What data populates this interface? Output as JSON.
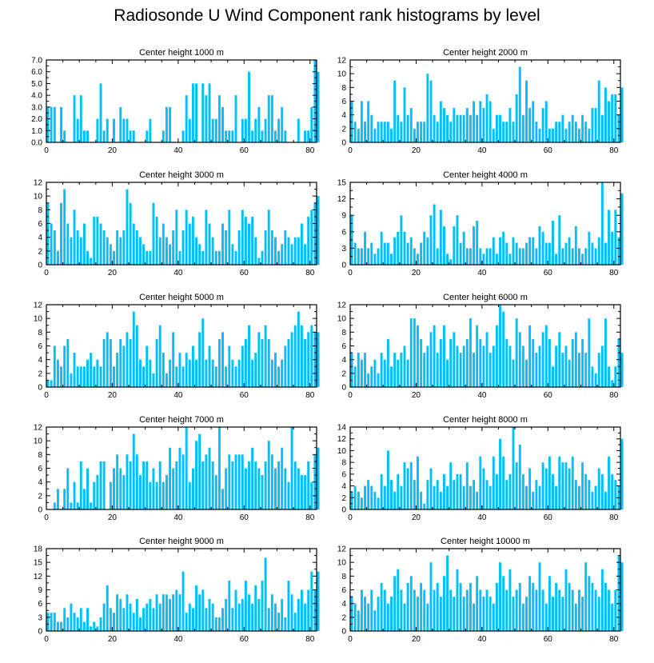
{
  "title": "Radiosonde U Wind Component rank histograms by level",
  "colors": {
    "bar": "#00bfff",
    "axis": "#000000"
  },
  "chart_data": [
    {
      "type": "bar",
      "title": "Center height 1000 m",
      "xlim": [
        0,
        82
      ],
      "ylim": [
        0,
        7
      ],
      "xticks": [
        0,
        20,
        40,
        60,
        80
      ],
      "xtick_labels": [
        "0",
        "20",
        "40",
        "60",
        "80"
      ],
      "yticks": [
        0,
        1,
        2,
        3,
        4,
        5,
        6,
        7
      ],
      "ytick_labels": [
        "0.0",
        "1.0",
        "2.0",
        "3.0",
        "4.0",
        "5.0",
        "6.0",
        "7.0"
      ],
      "values": [
        3,
        3,
        3,
        0,
        3,
        1,
        0,
        0,
        4,
        2,
        4,
        1,
        1,
        0,
        0,
        2,
        5,
        1,
        2,
        0,
        2,
        0,
        3,
        2,
        2,
        1,
        1,
        0,
        0,
        0,
        1,
        2,
        0,
        0,
        0,
        1,
        3,
        3,
        0,
        0,
        0,
        1,
        4,
        2,
        5,
        5,
        0,
        5,
        4,
        5,
        2,
        2,
        4,
        3,
        1,
        1,
        1,
        4,
        0,
        2,
        2,
        6,
        1,
        2,
        3,
        1,
        2,
        4,
        4,
        1,
        2,
        3,
        1,
        0,
        0,
        0,
        2,
        0,
        1,
        1,
        3,
        7,
        6
      ]
    },
    {
      "type": "bar",
      "title": "Center height 2000 m",
      "xlim": [
        0,
        82
      ],
      "ylim": [
        0,
        12
      ],
      "xticks": [
        0,
        20,
        40,
        60,
        80
      ],
      "xtick_labels": [
        "0",
        "20",
        "40",
        "60",
        "80"
      ],
      "yticks": [
        0,
        2,
        4,
        6,
        8,
        10,
        12
      ],
      "ytick_labels": [
        "0",
        "2",
        "4",
        "6",
        "8",
        "10",
        "12"
      ],
      "values": [
        6,
        3,
        2,
        6,
        3,
        6,
        4,
        2,
        3,
        3,
        3,
        3,
        2,
        9,
        4,
        3,
        8,
        4,
        5,
        2,
        3,
        3,
        3,
        10,
        9,
        4,
        3,
        6,
        5,
        4,
        3,
        5,
        4,
        4,
        4,
        5,
        4,
        6,
        4,
        6,
        5,
        7,
        6,
        2,
        4,
        4,
        3,
        3,
        5,
        3,
        7,
        11,
        4,
        9,
        5,
        6,
        3,
        2,
        5,
        6,
        2,
        2,
        3,
        3,
        4,
        2,
        3,
        4,
        3,
        2,
        4,
        3,
        2,
        5,
        5,
        9,
        4,
        8,
        6,
        7,
        7,
        4,
        8
      ]
    },
    {
      "type": "bar",
      "title": "Center height 3000 m",
      "xlim": [
        0,
        82
      ],
      "ylim": [
        0,
        12
      ],
      "xticks": [
        0,
        20,
        40,
        60,
        80
      ],
      "xtick_labels": [
        "0",
        "20",
        "40",
        "60",
        "80"
      ],
      "yticks": [
        0,
        2,
        4,
        6,
        8,
        10,
        12
      ],
      "ytick_labels": [
        "0",
        "2",
        "4",
        "6",
        "8",
        "10",
        "12"
      ],
      "values": [
        9,
        6,
        5,
        2,
        9,
        11,
        6,
        4,
        8,
        5,
        4,
        6,
        2,
        1,
        7,
        7,
        6,
        5,
        4,
        3,
        2,
        5,
        4,
        5,
        11,
        9,
        6,
        5,
        4,
        3,
        2,
        2,
        9,
        7,
        4,
        6,
        4,
        3,
        5,
        8,
        2,
        5,
        8,
        6,
        7,
        4,
        3,
        2,
        8,
        6,
        4,
        2,
        2,
        6,
        5,
        8,
        3,
        2,
        5,
        8,
        7,
        6,
        7,
        4,
        1,
        2,
        5,
        8,
        5,
        4,
        2,
        3,
        5,
        4,
        3,
        4,
        4,
        6,
        3,
        7,
        8,
        9,
        10
      ]
    },
    {
      "type": "bar",
      "title": "Center height 4000 m",
      "xlim": [
        0,
        82
      ],
      "ylim": [
        0,
        15
      ],
      "xticks": [
        0,
        20,
        40,
        60,
        80
      ],
      "xtick_labels": [
        "0",
        "20",
        "40",
        "60",
        "80"
      ],
      "yticks": [
        0,
        3,
        6,
        9,
        12,
        15
      ],
      "ytick_labels": [
        "0",
        "3",
        "6",
        "9",
        "12",
        "15"
      ],
      "values": [
        9,
        4,
        3,
        3,
        6,
        3,
        4,
        2,
        3,
        6,
        4,
        4,
        2,
        5,
        6,
        9,
        6,
        4,
        5,
        3,
        2,
        4,
        6,
        5,
        9,
        11,
        3,
        10,
        7,
        2,
        1,
        7,
        9,
        4,
        6,
        3,
        3,
        7,
        8,
        3,
        2,
        3,
        3,
        5,
        2,
        5,
        6,
        4,
        2,
        5,
        4,
        3,
        3,
        4,
        5,
        5,
        3,
        7,
        6,
        4,
        4,
        8,
        2,
        9,
        3,
        4,
        5,
        3,
        7,
        3,
        2,
        3,
        6,
        4,
        3,
        5,
        15,
        4,
        10,
        6,
        10,
        5,
        13
      ]
    },
    {
      "type": "bar",
      "title": "Center height 5000 m",
      "xlim": [
        0,
        82
      ],
      "ylim": [
        0,
        12
      ],
      "xticks": [
        0,
        20,
        40,
        60,
        80
      ],
      "xtick_labels": [
        "0",
        "20",
        "40",
        "60",
        "80"
      ],
      "yticks": [
        0,
        2,
        4,
        6,
        8,
        10,
        12
      ],
      "ytick_labels": [
        "0",
        "2",
        "4",
        "6",
        "8",
        "10",
        "12"
      ],
      "values": [
        1,
        1,
        6,
        4,
        3,
        6,
        7,
        2,
        5,
        3,
        3,
        3,
        4,
        5,
        3,
        4,
        3,
        7,
        8,
        7,
        3,
        5,
        7,
        6,
        8,
        7,
        11,
        9,
        4,
        3,
        6,
        4,
        2,
        7,
        9,
        5,
        2,
        4,
        8,
        3,
        5,
        3,
        5,
        4,
        6,
        4,
        8,
        10,
        4,
        6,
        4,
        3,
        7,
        8,
        3,
        6,
        4,
        3,
        4,
        6,
        7,
        9,
        4,
        5,
        8,
        7,
        9,
        7,
        4,
        5,
        3,
        4,
        6,
        7,
        8,
        9,
        11,
        9,
        7,
        8,
        9,
        8,
        8
      ]
    },
    {
      "type": "bar",
      "title": "Center height 6000 m",
      "xlim": [
        0,
        82
      ],
      "ylim": [
        0,
        12
      ],
      "xticks": [
        0,
        20,
        40,
        60,
        80
      ],
      "xtick_labels": [
        "0",
        "20",
        "40",
        "60",
        "80"
      ],
      "yticks": [
        0,
        2,
        4,
        6,
        8,
        10,
        12
      ],
      "ytick_labels": [
        "0",
        "2",
        "4",
        "6",
        "8",
        "10",
        "12"
      ],
      "values": [
        5,
        3,
        5,
        4,
        5,
        2,
        3,
        4,
        2,
        5,
        4,
        7,
        3,
        5,
        4,
        5,
        6,
        4,
        10,
        10,
        9,
        7,
        5,
        6,
        8,
        9,
        5,
        7,
        9,
        4,
        7,
        8,
        6,
        5,
        6,
        7,
        10,
        5,
        9,
        7,
        6,
        8,
        5,
        6,
        9,
        12,
        11,
        7,
        6,
        4,
        10,
        8,
        6,
        4,
        9,
        7,
        5,
        6,
        8,
        9,
        7,
        3,
        6,
        8,
        5,
        6,
        4,
        7,
        8,
        5,
        7,
        5,
        10,
        3,
        2,
        5,
        6,
        10,
        3,
        1,
        3,
        7,
        5
      ]
    },
    {
      "type": "bar",
      "title": "Center height 7000 m",
      "xlim": [
        0,
        82
      ],
      "ylim": [
        0,
        12
      ],
      "xticks": [
        0,
        20,
        40,
        60,
        80
      ],
      "xtick_labels": [
        "0",
        "20",
        "40",
        "60",
        "80"
      ],
      "yticks": [
        0,
        2,
        4,
        6,
        8,
        10,
        12
      ],
      "ytick_labels": [
        "0",
        "2",
        "4",
        "6",
        "8",
        "10",
        "12"
      ],
      "values": [
        0,
        0,
        1,
        3,
        0,
        3,
        6,
        1,
        4,
        1,
        7,
        3,
        6,
        1,
        4,
        5,
        7,
        7,
        0,
        4,
        6,
        8,
        6,
        5,
        8,
        7,
        11,
        8,
        5,
        7,
        7,
        4,
        6,
        4,
        7,
        4,
        5,
        9,
        6,
        7,
        9,
        8,
        12,
        4,
        6,
        10,
        11,
        7,
        8,
        9,
        7,
        5,
        12,
        3,
        6,
        8,
        7,
        8,
        8,
        8,
        6,
        7,
        9,
        7,
        6,
        5,
        7,
        10,
        8,
        6,
        7,
        9,
        6,
        4,
        12,
        7,
        6,
        5,
        5,
        7,
        4,
        8,
        9
      ]
    },
    {
      "type": "bar",
      "title": "Center height 8000 m",
      "xlim": [
        0,
        82
      ],
      "ylim": [
        0,
        14
      ],
      "xticks": [
        0,
        20,
        40,
        60,
        80
      ],
      "xtick_labels": [
        "0",
        "20",
        "40",
        "60",
        "80"
      ],
      "yticks": [
        0,
        2,
        4,
        6,
        8,
        10,
        12,
        14
      ],
      "ytick_labels": [
        "0",
        "2",
        "4",
        "6",
        "8",
        "10",
        "12",
        "14"
      ],
      "values": [
        3,
        4,
        3,
        2,
        4,
        5,
        4,
        3,
        2,
        6,
        4,
        10,
        5,
        3,
        6,
        4,
        8,
        7,
        8,
        5,
        9,
        3,
        1,
        5,
        7,
        4,
        5,
        3,
        6,
        4,
        8,
        5,
        6,
        6,
        4,
        8,
        4,
        5,
        3,
        9,
        7,
        5,
        4,
        9,
        6,
        12,
        9,
        5,
        6,
        14,
        8,
        11,
        6,
        4,
        7,
        3,
        5,
        4,
        8,
        7,
        9,
        6,
        4,
        9,
        8,
        8,
        7,
        9,
        5,
        4,
        8,
        6,
        5,
        3,
        4,
        7,
        6,
        3,
        9,
        6,
        5,
        4,
        12
      ]
    },
    {
      "type": "bar",
      "title": "Center height 9000 m",
      "xlim": [
        0,
        82
      ],
      "ylim": [
        0,
        18
      ],
      "xticks": [
        0,
        20,
        40,
        60,
        80
      ],
      "xtick_labels": [
        "0",
        "20",
        "40",
        "60",
        "80"
      ],
      "yticks": [
        0,
        3,
        6,
        9,
        12,
        15,
        18
      ],
      "ytick_labels": [
        "0",
        "3",
        "6",
        "9",
        "12",
        "15",
        "18"
      ],
      "values": [
        4,
        4,
        4,
        2,
        2,
        5,
        3,
        6,
        4,
        3,
        5,
        2,
        5,
        1,
        2,
        1,
        3,
        6,
        10,
        5,
        4,
        8,
        7,
        5,
        8,
        6,
        4,
        7,
        3,
        5,
        6,
        7,
        5,
        8,
        6,
        8,
        8,
        7,
        8,
        9,
        8,
        13,
        4,
        6,
        5,
        10,
        8,
        9,
        5,
        7,
        6,
        3,
        3,
        5,
        7,
        11,
        5,
        9,
        6,
        7,
        11,
        8,
        6,
        10,
        7,
        11,
        16,
        5,
        8,
        6,
        4,
        7,
        3,
        11,
        8,
        4,
        7,
        9,
        6,
        9,
        13,
        9,
        13
      ]
    },
    {
      "type": "bar",
      "title": "Center height 10000 m",
      "xlim": [
        0,
        82
      ],
      "ylim": [
        0,
        12
      ],
      "xticks": [
        0,
        20,
        40,
        60,
        80
      ],
      "xtick_labels": [
        "0",
        "20",
        "40",
        "60",
        "80"
      ],
      "yticks": [
        0,
        2,
        4,
        6,
        8,
        10,
        12
      ],
      "ytick_labels": [
        "0",
        "2",
        "4",
        "6",
        "8",
        "10",
        "12"
      ],
      "values": [
        5,
        4,
        3,
        6,
        5,
        4,
        6,
        3,
        5,
        7,
        6,
        4,
        5,
        8,
        9,
        6,
        4,
        7,
        8,
        6,
        5,
        7,
        6,
        4,
        10,
        6,
        7,
        5,
        8,
        11,
        6,
        5,
        9,
        7,
        5,
        6,
        7,
        4,
        8,
        6,
        5,
        6,
        5,
        4,
        7,
        10,
        8,
        6,
        9,
        5,
        6,
        7,
        4,
        5,
        8,
        7,
        6,
        10,
        6,
        4,
        8,
        5,
        7,
        6,
        5,
        9,
        7,
        6,
        4,
        6,
        5,
        10,
        8,
        7,
        6,
        5,
        9,
        7,
        6,
        4,
        6,
        11,
        10
      ]
    }
  ]
}
